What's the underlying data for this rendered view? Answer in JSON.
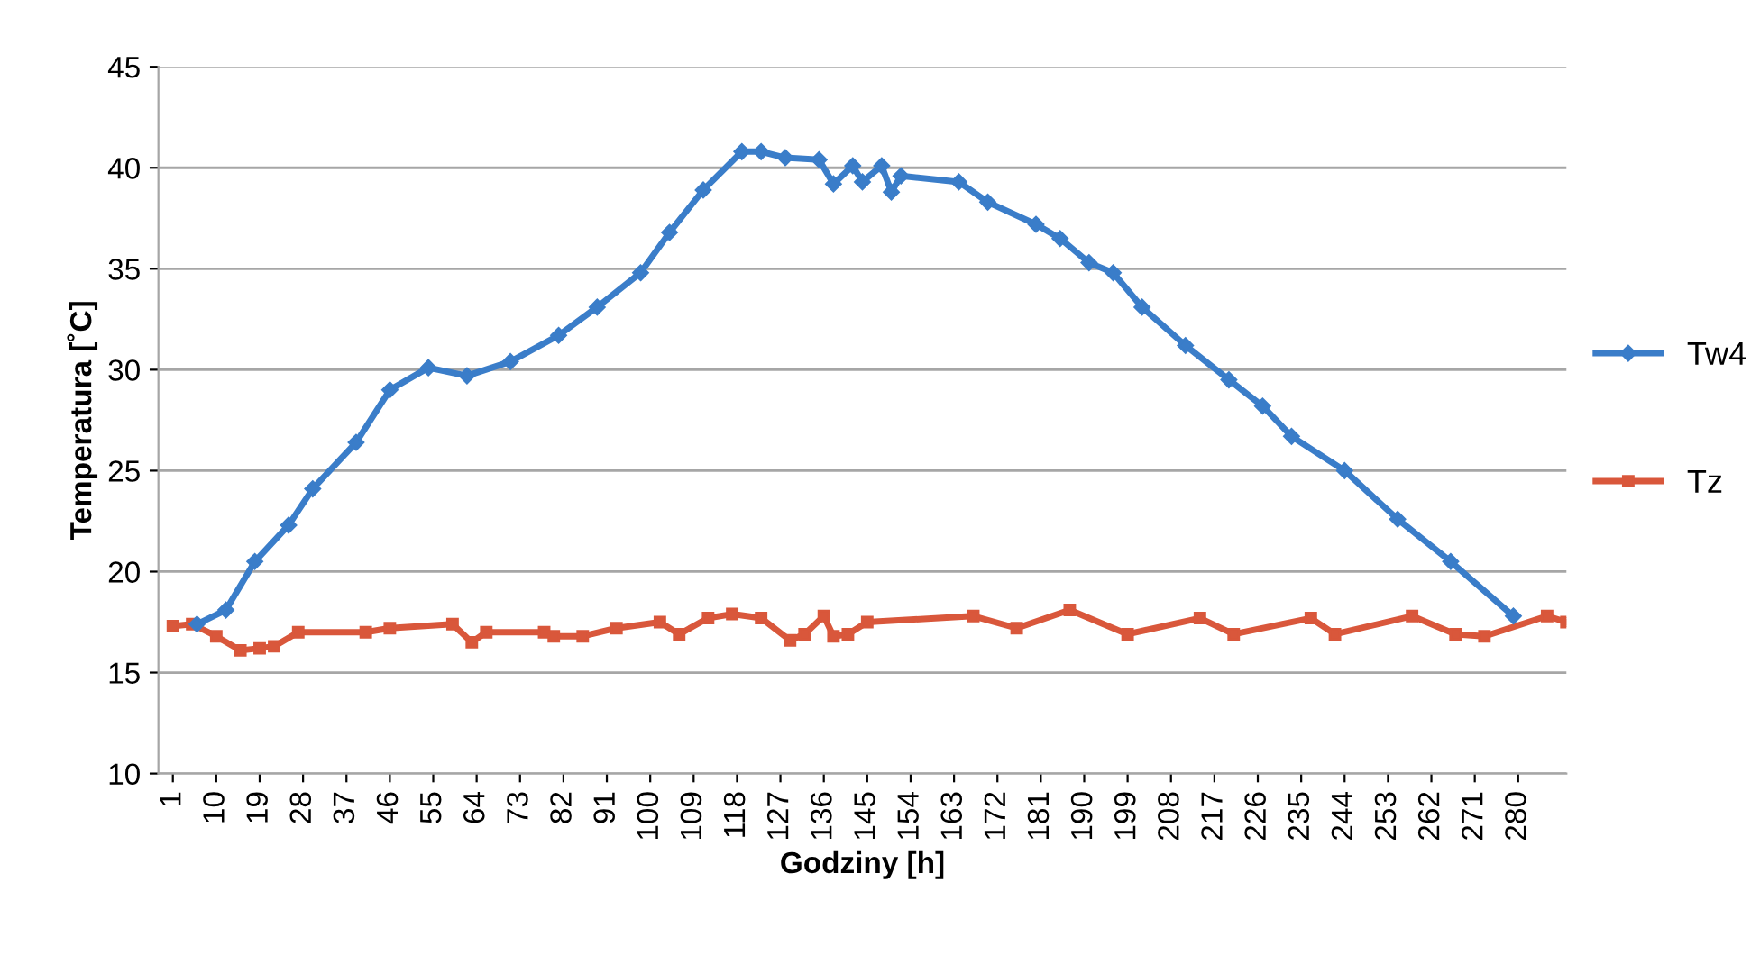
{
  "chart_data": {
    "type": "line",
    "xlabel": "Godziny [h]",
    "ylabel": "Temperatura [˚C]",
    "xlim": [
      -2,
      290
    ],
    "xticks": [
      1,
      10,
      19,
      28,
      37,
      46,
      55,
      64,
      73,
      82,
      91,
      100,
      109,
      118,
      127,
      136,
      145,
      154,
      163,
      172,
      181,
      190,
      199,
      208,
      217,
      226,
      235,
      244,
      253,
      262,
      271,
      280
    ],
    "ylim": [
      10,
      45
    ],
    "yticks": [
      10,
      15,
      20,
      25,
      30,
      35,
      40,
      45
    ],
    "grid": "y",
    "legend": "right",
    "series": [
      {
        "name": "Tw4",
        "color": "#3a7dc9",
        "marker": "diamond",
        "x": [
          6,
          12,
          18,
          25,
          30,
          39,
          46,
          54,
          62,
          71,
          81,
          89,
          98,
          104,
          111,
          119,
          123,
          128,
          135,
          138,
          142,
          144,
          148,
          150,
          152,
          164,
          170,
          180,
          185,
          191,
          196,
          202,
          211,
          220,
          227,
          233,
          244,
          255,
          266,
          279
        ],
        "values": [
          17.4,
          18.1,
          20.5,
          22.3,
          24.1,
          26.4,
          29.0,
          30.1,
          29.7,
          30.4,
          31.7,
          33.1,
          34.8,
          36.8,
          38.9,
          40.8,
          40.8,
          40.5,
          40.4,
          39.2,
          40.1,
          39.3,
          40.1,
          38.8,
          39.6,
          39.3,
          38.3,
          37.2,
          36.5,
          35.3,
          34.8,
          33.1,
          31.2,
          29.5,
          28.2,
          26.7,
          25.0,
          22.6,
          20.5,
          17.8
        ]
      },
      {
        "name": "Tz",
        "color": "#d9573b",
        "marker": "square",
        "x": [
          1,
          5,
          10,
          15,
          19,
          22,
          27,
          41,
          46,
          59,
          63,
          66,
          78,
          80,
          86,
          93,
          102,
          106,
          112,
          117,
          123,
          129,
          132,
          136,
          138,
          141,
          145,
          167,
          176,
          187,
          199,
          214,
          221,
          237,
          242,
          258,
          267,
          273,
          286,
          290
        ],
        "values": [
          17.3,
          17.4,
          16.8,
          16.1,
          16.2,
          16.3,
          17.0,
          17.0,
          17.2,
          17.4,
          16.5,
          17.0,
          17.0,
          16.8,
          16.8,
          17.2,
          17.5,
          16.9,
          17.7,
          17.9,
          17.7,
          16.6,
          16.9,
          17.8,
          16.8,
          16.9,
          17.5,
          17.8,
          17.2,
          18.1,
          16.9,
          17.7,
          16.9,
          17.7,
          16.9,
          17.8,
          16.9,
          16.8,
          17.8,
          17.5
        ]
      }
    ]
  }
}
